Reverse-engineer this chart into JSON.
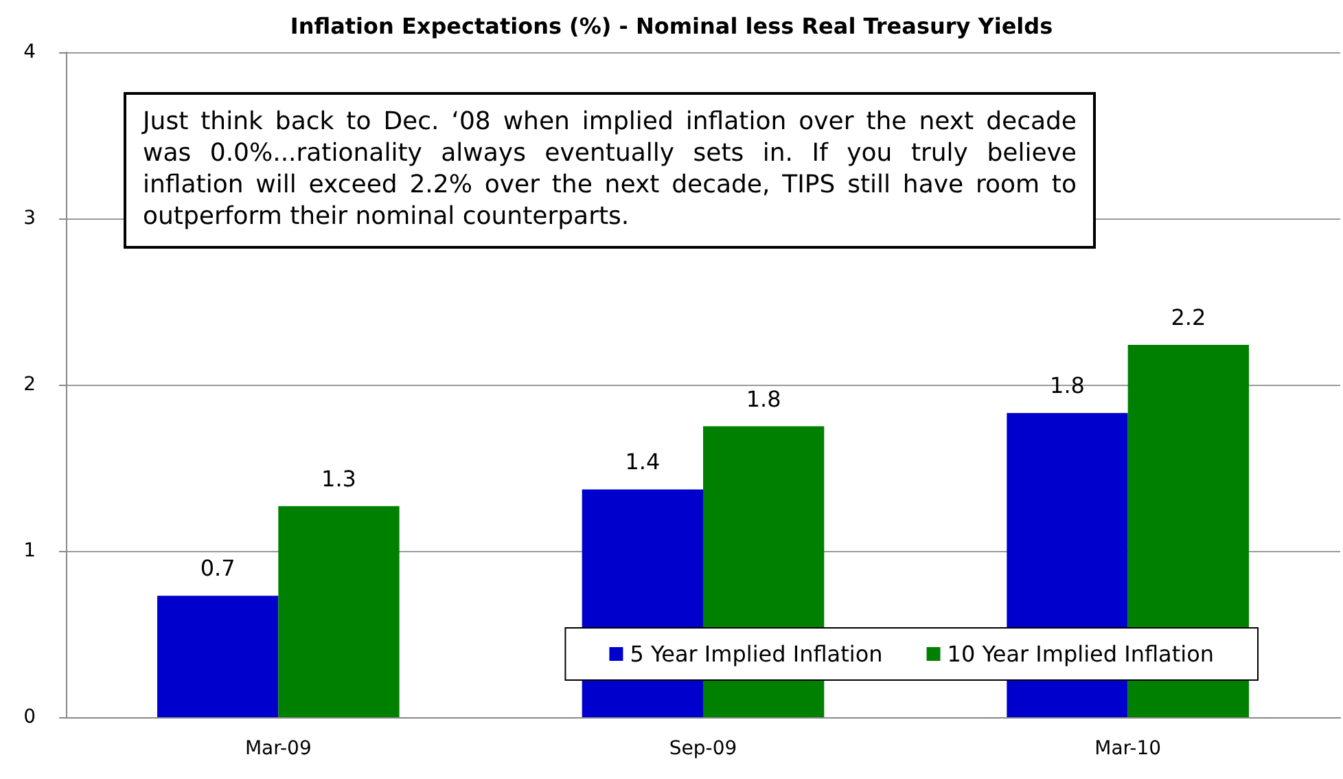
{
  "chart_data": {
    "type": "bar",
    "title": "Inflation Expectations (%) - Nominal less Real Treasury Yields",
    "categories": [
      "Mar-09",
      "Sep-09",
      "Mar-10"
    ],
    "series": [
      {
        "name": "5 Year Implied Inflation",
        "color": "#0000cc",
        "values": [
          0.73,
          1.37,
          1.83
        ],
        "value_labels": [
          "0.7",
          "1.4",
          "1.8"
        ]
      },
      {
        "name": "10 Year Implied Inflation",
        "color": "#008000",
        "values": [
          1.27,
          1.75,
          2.24
        ],
        "value_labels": [
          "1.3",
          "1.8",
          "2.2"
        ]
      }
    ],
    "ylim": [
      0,
      4
    ],
    "yticks": [
      0,
      1,
      2,
      3,
      4
    ],
    "grid": "y",
    "legend": "bottom right",
    "annotations": [
      "Just think back to Dec. ‘08 when implied inflation over the next decade was 0.0%...rationality always eventually sets in. If you truly believe inflation will exceed 2.2% over the next decade, TIPS still have room to outperform their nominal counterparts."
    ]
  }
}
